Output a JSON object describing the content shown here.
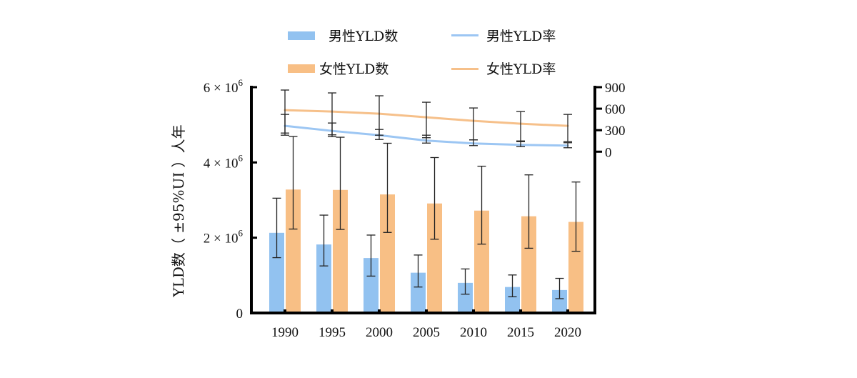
{
  "chart_data": {
    "type": "bar+line",
    "categories": [
      "1990",
      "1995",
      "2000",
      "2005",
      "2010",
      "2015",
      "2020"
    ],
    "left_axis": {
      "label": "YLD数（ ±95%UI ）人年",
      "range": [
        0,
        6000000
      ],
      "ticks": [
        {
          "base": "0",
          "exp": ""
        },
        {
          "base": "2 × 10",
          "exp": "6"
        },
        {
          "base": "4 × 10",
          "exp": "6"
        },
        {
          "base": "6 × 10",
          "exp": "6"
        }
      ]
    },
    "right_axis": {
      "range": [
        -2250,
        900
      ],
      "ticks": [
        "0",
        "300",
        "600",
        "900"
      ]
    },
    "bars": [
      {
        "name": "男性YLD数",
        "color": "#92c2f0",
        "values": [
          2130000,
          1820000,
          1460000,
          1070000,
          800000,
          690000,
          610000
        ],
        "lower": [
          1470000,
          1250000,
          980000,
          690000,
          500000,
          430000,
          380000
        ],
        "upper": [
          3050000,
          2600000,
          2070000,
          1540000,
          1170000,
          1010000,
          920000
        ]
      },
      {
        "name": "女性YLD数",
        "color": "#f8bf85",
        "values": [
          3280000,
          3270000,
          3150000,
          2910000,
          2720000,
          2570000,
          2420000
        ],
        "lower": [
          2230000,
          2220000,
          2140000,
          1960000,
          1830000,
          1720000,
          1640000
        ],
        "upper": [
          4690000,
          4670000,
          4510000,
          4130000,
          3900000,
          3670000,
          3480000
        ]
      }
    ],
    "lines": [
      {
        "name": "男性YLD率",
        "color": "#9cc6f3",
        "values": [
          360,
          290,
          230,
          155,
          115,
          95,
          85
        ],
        "lower": [
          260,
          210,
          170,
          120,
          85,
          70,
          55
        ],
        "upper": [
          520,
          400,
          310,
          230,
          165,
          150,
          125
        ]
      },
      {
        "name": "女性YLD率",
        "color": "#f6c08a",
        "values": [
          580,
          560,
          530,
          480,
          430,
          390,
          360
        ],
        "lower": [
          230,
          235,
          230,
          195,
          165,
          140,
          140
        ],
        "upper": [
          860,
          820,
          780,
          690,
          610,
          560,
          520
        ]
      }
    ]
  }
}
